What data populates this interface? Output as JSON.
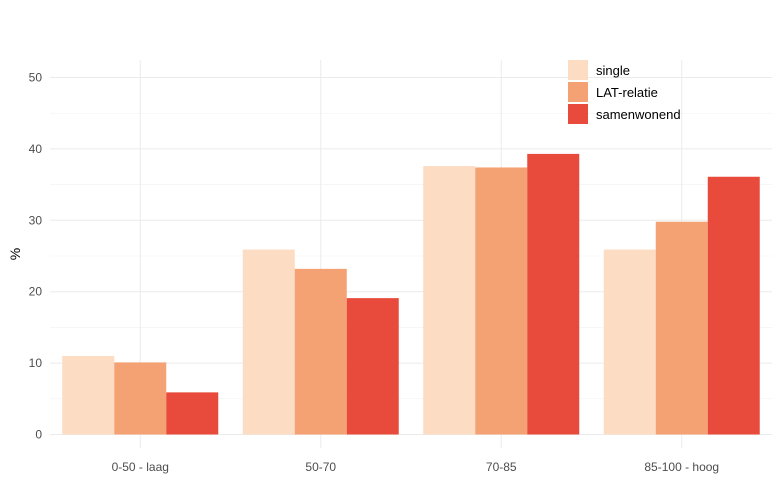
{
  "chart_data": {
    "type": "bar",
    "title": "",
    "xlabel": "",
    "ylabel": "%",
    "ylim": [
      0,
      52
    ],
    "yticks": [
      0,
      10,
      20,
      30,
      40,
      50
    ],
    "grid": true,
    "legend_position": "top-right",
    "categories": [
      "0-50 - laag",
      "50-70",
      "70-85",
      "85-100 - hoog"
    ],
    "series": [
      {
        "name": "single",
        "color": "#FCDCC2",
        "values": [
          11.0,
          25.9,
          37.6,
          25.9
        ]
      },
      {
        "name": "LAT-relatie",
        "color": "#F4A174",
        "values": [
          10.1,
          23.2,
          37.4,
          29.8
        ]
      },
      {
        "name": "samenwonend",
        "color": "#E84B3C",
        "values": [
          5.9,
          19.1,
          39.3,
          36.1
        ]
      }
    ]
  }
}
